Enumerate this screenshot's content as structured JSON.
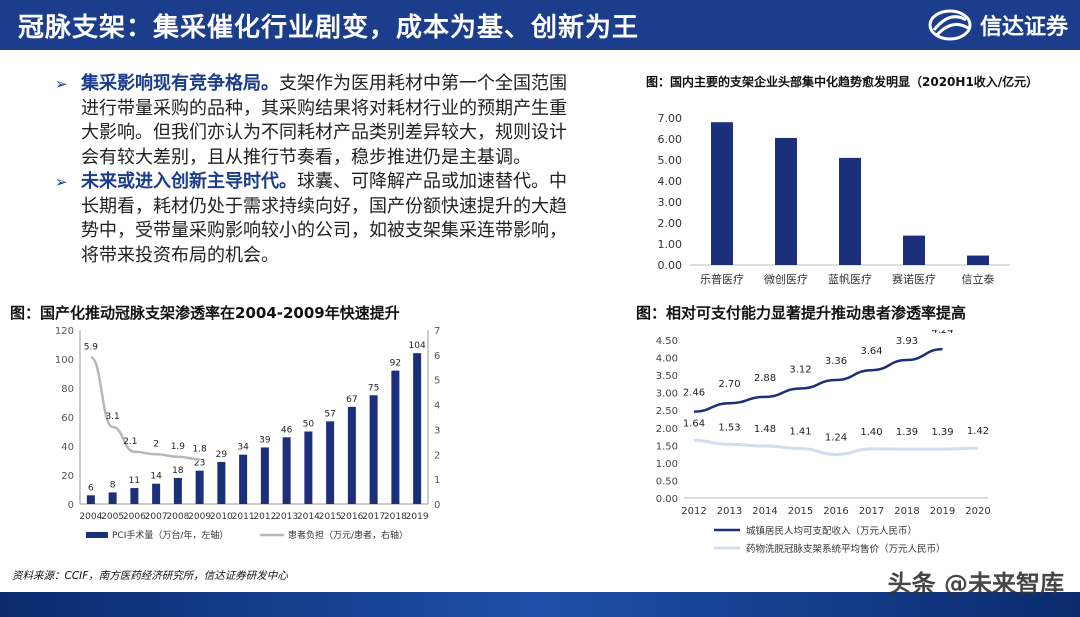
{
  "header": {
    "title": "冠脉支架：集采催化行业剧变，成本为基、创新为王",
    "brand": "信达证券"
  },
  "bullets": [
    {
      "bold": "集采影响现有竞争格局。",
      "text": "支架作为医用耗材中第一个全国范围进行带量采购的品种，其采购结果将对耗材行业的预期产生重大影响。但我们亦认为不同耗材产品类别差异较大，规则设计会有较大差别，且从推行节奏看，稳步推进仍是主基调。"
    },
    {
      "bold": "未来或进入创新主导时代。",
      "text": "球囊、可降解产品或加速替代。中长期看，耗材仍处于需求持续向好，国产份额快速提升的大趋势中，受带量采购影响较小的公司，如被支架集采连带影响，将带来投资布局的机会。"
    }
  ],
  "figures": {
    "left_title": "图：国产化推动冠脉支架渗透率在2004-2009年快速提升",
    "top_right_title": "图：国内主要的支架企业头部集中化趋势愈发明显（2020H1收入/亿元）",
    "bottom_right_title": "图：相对可支付能力显著提升推动患者渗透率提高"
  },
  "source": "资料来源：CCIF，南方医药经济研究所，信达证券研发中心",
  "watermark": "头条 @未来智库",
  "colors": {
    "navy": "#1c2f7a",
    "gray_line": "#b8b8b8",
    "light_blue_line": "#cfdff0"
  },
  "chart_data": [
    {
      "type": "bar",
      "categories": [
        "乐普医疗",
        "微创医疗",
        "蓝帆医疗",
        "赛诺医疗",
        "信立泰"
      ],
      "values": [
        6.8,
        6.05,
        5.1,
        1.4,
        0.45
      ],
      "ylim": [
        0,
        7
      ],
      "yticks": [
        "0.00",
        "1.00",
        "2.00",
        "3.00",
        "4.00",
        "5.00",
        "6.00",
        "7.00"
      ],
      "grid": false
    },
    {
      "type": "bar+line",
      "categories": [
        "2004",
        "2005",
        "2006",
        "2007",
        "2008",
        "2009",
        "2010",
        "2011",
        "2012",
        "2013",
        "2014",
        "2015",
        "2016",
        "2017",
        "2018",
        "2019"
      ],
      "series": [
        {
          "name": "PCI手术量（万台/年，左轴）",
          "type": "bar",
          "axis": "left",
          "values": [
            6,
            8,
            11,
            14,
            18,
            23,
            29,
            34,
            39,
            46,
            50,
            57,
            67,
            75,
            92,
            104
          ]
        },
        {
          "name": "患者负担（万元/患者，右轴）",
          "type": "line",
          "axis": "right",
          "values": [
            5.9,
            3.1,
            2.1,
            2,
            1.9,
            1.8
          ],
          "x": [
            "2004",
            "2005",
            "2006",
            "2007",
            "2008",
            "2009"
          ]
        }
      ],
      "ylim_left": [
        0,
        120
      ],
      "yticks_left": [
        "0",
        "20",
        "40",
        "60",
        "80",
        "100",
        "120"
      ],
      "ylim_right": [
        0,
        7
      ],
      "yticks_right": [
        "0",
        "1",
        "2",
        "3",
        "4",
        "5",
        "6",
        "7"
      ]
    },
    {
      "type": "line",
      "x": [
        "2012",
        "2013",
        "2014",
        "2015",
        "2016",
        "2017",
        "2018",
        "2019",
        "2020"
      ],
      "series": [
        {
          "name": "城镇居民人均可支配收入（万元人民币）",
          "values": [
            2.46,
            2.7,
            2.88,
            3.12,
            3.36,
            3.64,
            3.93,
            4.24,
            null
          ]
        },
        {
          "name": "药物洗脱冠脉支架系统平均售价（万元人民币）",
          "values": [
            1.64,
            1.53,
            1.48,
            1.41,
            1.24,
            1.4,
            1.39,
            1.39,
            1.42
          ]
        }
      ],
      "ylim": [
        0,
        4.5
      ],
      "yticks": [
        "0.00",
        "0.50",
        "1.00",
        "1.50",
        "2.00",
        "2.50",
        "3.00",
        "3.50",
        "4.00",
        "4.50"
      ],
      "grid": false
    }
  ]
}
